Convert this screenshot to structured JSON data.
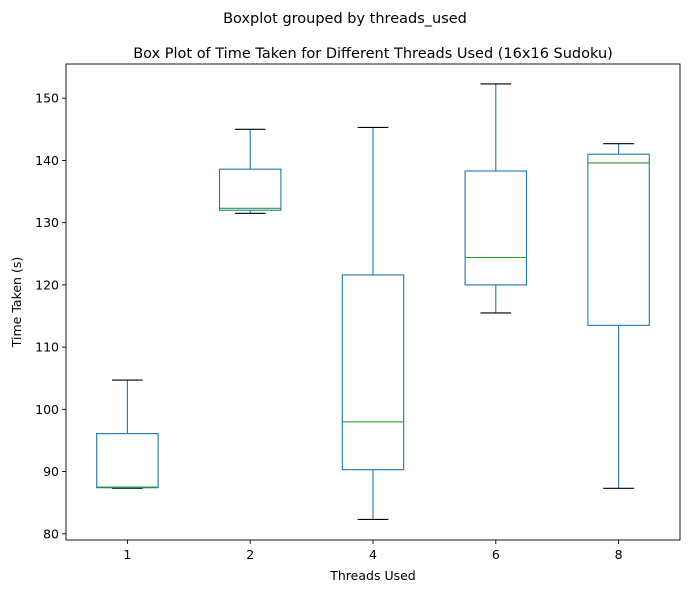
{
  "chart_data": {
    "type": "box",
    "suptitle": "Boxplot grouped by threads_used",
    "title": "Box Plot of Time Taken for Different Threads Used (16x16 Sudoku)",
    "xlabel": "Threads Used",
    "ylabel": "Time Taken (s)",
    "ylim": [
      79,
      155.5
    ],
    "yticks": [
      80,
      90,
      100,
      110,
      120,
      130,
      140,
      150
    ],
    "grid": false,
    "colors": {
      "box": "#1f77b4",
      "median": "#2ca02c",
      "cap": "#000000"
    },
    "categories": [
      "1",
      "2",
      "4",
      "6",
      "8"
    ],
    "boxes": [
      {
        "category": "1",
        "whislo": 87.3,
        "q1": 87.4,
        "median": 87.5,
        "q3": 96.1,
        "whishi": 104.7
      },
      {
        "category": "2",
        "whislo": 131.5,
        "q1": 132.0,
        "median": 132.3,
        "q3": 138.6,
        "whishi": 145.0
      },
      {
        "category": "4",
        "whislo": 82.3,
        "q1": 90.3,
        "median": 98.0,
        "q3": 121.6,
        "whishi": 145.3
      },
      {
        "category": "6",
        "whislo": 115.5,
        "q1": 120.0,
        "median": 124.4,
        "q3": 138.3,
        "whishi": 152.3
      },
      {
        "category": "8",
        "whislo": 87.3,
        "q1": 113.5,
        "median": 139.6,
        "q3": 141.0,
        "whishi": 142.7
      }
    ]
  }
}
